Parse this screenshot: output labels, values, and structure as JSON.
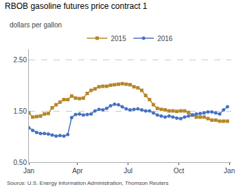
{
  "chart_data": {
    "type": "line",
    "title": "RBOB gasoline futures price contract 1",
    "ylabel": "dollars per gallon",
    "annotations": [
      "Source: U.S. Energy Information Administration, Thomson Reuters"
    ],
    "x": [
      0,
      2,
      4,
      6,
      8,
      10,
      12,
      14,
      16,
      18,
      20,
      22,
      24,
      26,
      28,
      30,
      32,
      34,
      36,
      38,
      40,
      42,
      44,
      46,
      48,
      50,
      52,
      54,
      56,
      58,
      60,
      62,
      64,
      66,
      68,
      70,
      72,
      74,
      76,
      78,
      80,
      82,
      84,
      86,
      88,
      90,
      92,
      94,
      96,
      98,
      100,
      102
    ],
    "series": [
      {
        "name": "2015",
        "color": "#b5862a",
        "marker": "square",
        "values": [
          1.46,
          1.38,
          1.39,
          1.4,
          1.44,
          1.45,
          1.56,
          1.62,
          1.67,
          1.72,
          1.72,
          1.79,
          1.75,
          1.74,
          1.75,
          1.84,
          1.9,
          1.93,
          1.97,
          1.98,
          1.98,
          2.0,
          2.01,
          2.02,
          2.03,
          2.02,
          2.01,
          1.97,
          1.95,
          1.9,
          1.8,
          1.72,
          1.62,
          1.55,
          1.53,
          1.52,
          1.5,
          1.5,
          1.49,
          1.5,
          1.5,
          1.47,
          1.42,
          1.38,
          1.38,
          1.38,
          1.35,
          1.32,
          1.32,
          1.3,
          1.3,
          1.3
        ]
      },
      {
        "name": "2016",
        "color": "#4472c4",
        "marker": "circle",
        "values": [
          1.17,
          1.12,
          1.08,
          1.06,
          1.06,
          1.05,
          1.03,
          1.01,
          1.02,
          1.01,
          1.04,
          1.37,
          1.43,
          1.44,
          1.42,
          1.43,
          1.44,
          1.5,
          1.53,
          1.52,
          1.55,
          1.6,
          1.63,
          1.62,
          1.58,
          1.54,
          1.52,
          1.53,
          1.54,
          1.52,
          1.5,
          1.5,
          1.46,
          1.42,
          1.4,
          1.38,
          1.4,
          1.38,
          1.36,
          1.35,
          1.38,
          1.4,
          1.42,
          1.44,
          1.45,
          1.46,
          1.48,
          1.48,
          1.46,
          1.44,
          1.52,
          1.58
        ]
      }
    ],
    "xlim": [
      0,
      104
    ],
    "xticks": [
      {
        "value": 0,
        "label": "Jan"
      },
      {
        "value": 25,
        "label": "Apr"
      },
      {
        "value": 51,
        "label": "Jul"
      },
      {
        "value": 77,
        "label": "Oct"
      },
      {
        "value": 103,
        "label": "Jan"
      }
    ],
    "ylim": [
      0.5,
      2.7
    ],
    "yticks": [
      {
        "value": 0.5,
        "label": "0.50"
      },
      {
        "value": 1.5,
        "label": "1.50"
      },
      {
        "value": 2.5,
        "label": "2.50"
      }
    ],
    "grid": true,
    "legend": "top"
  }
}
